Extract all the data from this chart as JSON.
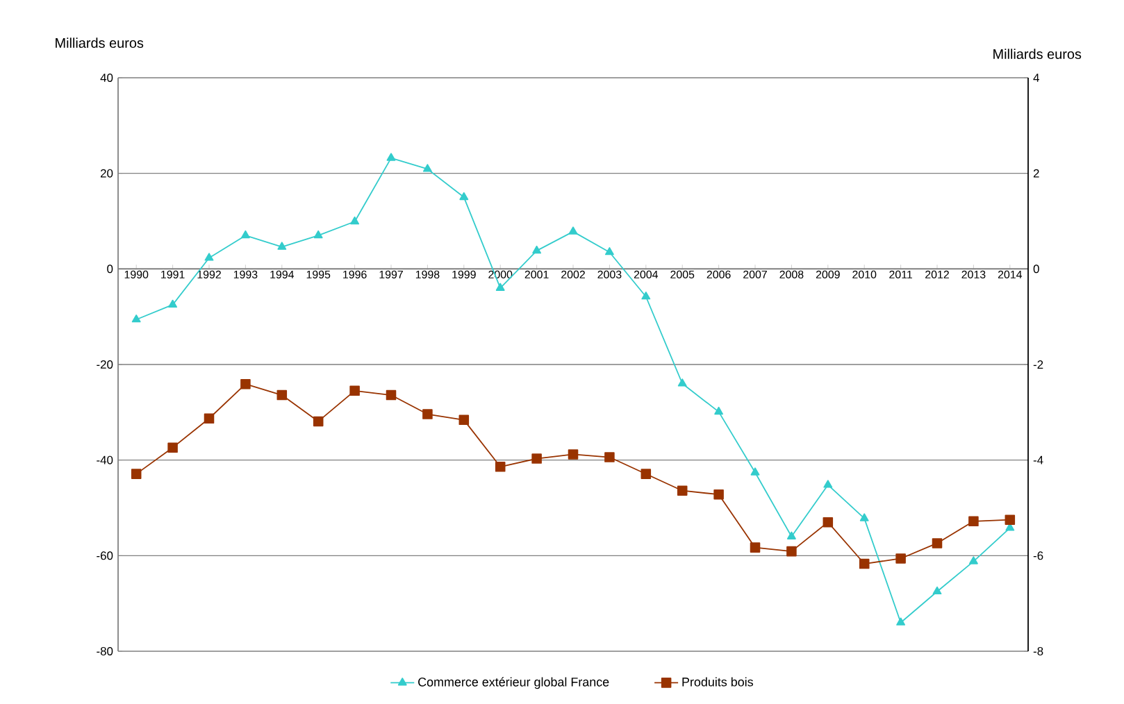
{
  "chart_data": {
    "type": "line",
    "ylabel": "Milliards euros",
    "y2label": "Milliards euros",
    "categories": [
      "1990",
      "1991",
      "1992",
      "1993",
      "1994",
      "1995",
      "1996",
      "1997",
      "1998",
      "1999",
      "2000",
      "2001",
      "2002",
      "2003",
      "2004",
      "2005",
      "2006",
      "2007",
      "2008",
      "2009",
      "2010",
      "2011",
      "2012",
      "2013",
      "2014"
    ],
    "series": [
      {
        "name": "Commerce extérieur global France",
        "color": "#33cccc",
        "marker": "triangle",
        "values": [
          -10.6,
          -7.5,
          2.3,
          7,
          4.6,
          7,
          9.9,
          23.2,
          20.9,
          15,
          -4,
          3.8,
          7.8,
          3.5,
          -5.8,
          -24,
          -29.9,
          -42.6,
          -56,
          -45.2,
          -52.2,
          -74,
          -67.5,
          -61.2,
          -54.2
        ]
      },
      {
        "name": "Produits bois",
        "color": "#993300",
        "marker": "square",
        "axis": "y2",
        "values": [
          -4.29,
          -3.74,
          -3.13,
          -2.41,
          -2.64,
          -3.19,
          -2.55,
          -2.64,
          -3.04,
          -3.16,
          -4.14,
          -3.97,
          -3.88,
          -3.94,
          -4.29,
          -4.64,
          -4.72,
          -5.83,
          -5.91,
          -5.3,
          -6.17,
          -6.06,
          -5.74,
          -5.28,
          -5.25
        ]
      }
    ],
    "ylim": [
      -80,
      40
    ],
    "yticks": [
      -80,
      -60,
      -40,
      -20,
      0,
      20,
      40
    ],
    "y2lim": [
      -8,
      4
    ],
    "y2ticks": [
      -8,
      -6,
      -4,
      -2,
      0,
      2,
      4
    ],
    "grid": "y",
    "legend": "bottom"
  }
}
